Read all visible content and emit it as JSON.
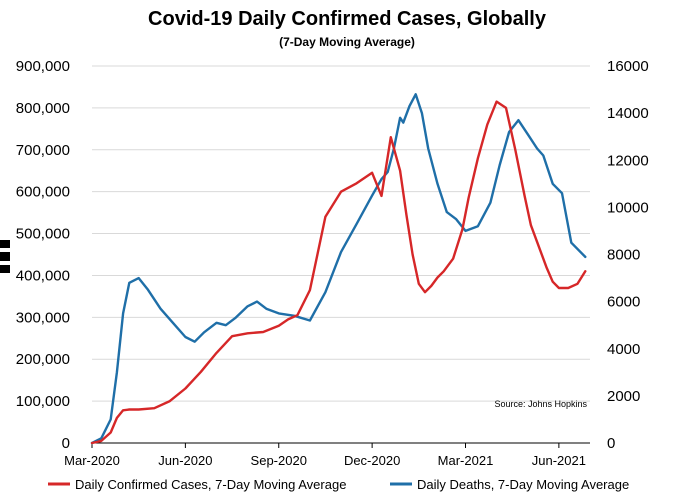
{
  "chart_data": {
    "type": "line",
    "title": "Covid-19 Daily Confirmed Cases, Globally",
    "subtitle": "(7-Day Moving Average)",
    "source": "Source: Johns Hopkins",
    "x_labels": [
      "Mar-2020",
      "Jun-2020",
      "Sep-2020",
      "Dec-2020",
      "Mar-2021",
      "Jun-2021"
    ],
    "x_range": [
      0,
      16
    ],
    "ylim_left": [
      0,
      900000
    ],
    "ylim_right": [
      0,
      16000
    ],
    "y_ticks_left": [
      "0",
      "100,000",
      "200,000",
      "300,000",
      "400,000",
      "500,000",
      "600,000",
      "700,000",
      "800,000",
      "900,000"
    ],
    "y_ticks_right": [
      "0",
      "2000",
      "4000",
      "6000",
      "8000",
      "10000",
      "12000",
      "14000",
      "16000"
    ],
    "series": [
      {
        "name": "Daily Confirmed Cases, 7-Day Moving Average",
        "axis": "left",
        "color": "#d62728",
        "x": [
          0,
          0.3,
          0.6,
          0.8,
          1.0,
          1.2,
          1.5,
          2.0,
          2.5,
          3.0,
          3.5,
          4.0,
          4.5,
          5.0,
          5.5,
          6.0,
          6.3,
          6.6,
          7.0,
          7.5,
          8.0,
          8.5,
          9.0,
          9.3,
          9.6,
          9.9,
          10.1,
          10.3,
          10.5,
          10.7,
          10.9,
          11.1,
          11.3,
          11.6,
          11.9,
          12.1,
          12.4,
          12.7,
          13.0,
          13.3,
          13.6,
          13.9,
          14.1,
          14.3,
          14.6,
          14.8,
          15.0,
          15.3,
          15.6,
          15.85
        ],
        "values": [
          0,
          5000,
          25000,
          60000,
          78000,
          80000,
          80000,
          83000,
          100000,
          130000,
          170000,
          215000,
          255000,
          262000,
          265000,
          280000,
          295000,
          305000,
          365000,
          540000,
          600000,
          620000,
          645000,
          590000,
          730000,
          650000,
          545000,
          450000,
          380000,
          360000,
          375000,
          395000,
          410000,
          440000,
          510000,
          585000,
          680000,
          760000,
          815000,
          800000,
          700000,
          590000,
          520000,
          480000,
          420000,
          385000,
          370000,
          370000,
          380000,
          410000
        ]
      },
      {
        "name": "Daily Deaths, 7-Day Moving Average",
        "axis": "right",
        "color": "#1f6fa8",
        "x": [
          0,
          0.3,
          0.6,
          0.8,
          1.0,
          1.2,
          1.5,
          1.8,
          2.2,
          2.6,
          3.0,
          3.3,
          3.6,
          4.0,
          4.3,
          4.6,
          5.0,
          5.3,
          5.6,
          6.0,
          6.5,
          7.0,
          7.5,
          8.0,
          8.5,
          9.0,
          9.3,
          9.5,
          9.7,
          9.9,
          10.0,
          10.2,
          10.4,
          10.6,
          10.8,
          11.1,
          11.4,
          11.7,
          12.0,
          12.4,
          12.8,
          13.1,
          13.4,
          13.7,
          14.0,
          14.3,
          14.5,
          14.8,
          15.1,
          15.4,
          15.85
        ],
        "values": [
          0,
          200,
          1000,
          3000,
          5500,
          6800,
          7000,
          6500,
          5700,
          5100,
          4500,
          4300,
          4700,
          5100,
          5000,
          5300,
          5800,
          6000,
          5700,
          5500,
          5400,
          5200,
          6400,
          8100,
          9300,
          10500,
          11200,
          11500,
          12500,
          13800,
          13600,
          14300,
          14800,
          14000,
          12500,
          11000,
          9800,
          9500,
          9000,
          9200,
          10200,
          11800,
          13200,
          13700,
          13100,
          12500,
          12200,
          11000,
          10600,
          8500,
          7900
        ]
      }
    ]
  }
}
